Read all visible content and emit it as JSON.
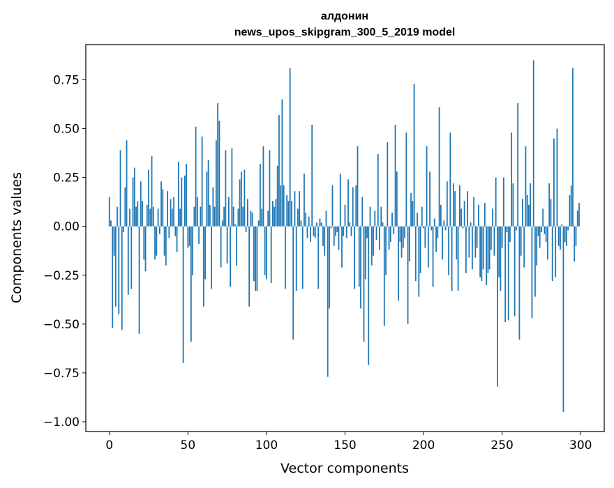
{
  "chart_data": {
    "type": "bar",
    "title_line1": "алдонин",
    "title_line2": "news_upos_skipgram_300_5_2019 model",
    "xlabel": "Vector components",
    "ylabel": "Components values",
    "xlim": [
      -15,
      315
    ],
    "ylim": [
      -1.05,
      0.93
    ],
    "xticks": [
      0,
      50,
      100,
      150,
      200,
      250,
      300
    ],
    "xtick_labels": [
      "0",
      "50",
      "100",
      "150",
      "200",
      "250",
      "300"
    ],
    "yticks": [
      0.75,
      0.5,
      0.25,
      0.0,
      -0.25,
      -0.5,
      -0.75,
      -1.0
    ],
    "ytick_labels": [
      "0.75",
      "0.50",
      "0.25",
      "0.00",
      "−0.25",
      "−0.50",
      "−0.75",
      "−1.00"
    ],
    "bar_color": "#1f77b4",
    "grid": false,
    "values": [
      0.15,
      0.03,
      -0.52,
      -0.15,
      -0.41,
      0.1,
      -0.45,
      0.39,
      -0.53,
      -0.03,
      0.2,
      0.44,
      -0.35,
      0.09,
      -0.32,
      0.25,
      0.3,
      0.1,
      0.13,
      -0.55,
      0.23,
      0.13,
      -0.17,
      -0.23,
      0.11,
      0.29,
      0.09,
      0.36,
      0.1,
      -0.17,
      -0.15,
      0.09,
      -0.04,
      0.23,
      0.19,
      -0.15,
      -0.2,
      0.18,
      -0.06,
      0.14,
      0.09,
      0.15,
      -0.05,
      -0.13,
      0.33,
      0.09,
      0.25,
      -0.7,
      0.26,
      0.32,
      -0.11,
      -0.1,
      -0.59,
      -0.25,
      0.1,
      0.51,
      0.15,
      -0.09,
      0.1,
      0.46,
      -0.41,
      -0.27,
      0.28,
      0.34,
      0.11,
      -0.32,
      0.2,
      0.1,
      0.44,
      0.63,
      0.54,
      -0.21,
      0.03,
      0.1,
      0.39,
      -0.19,
      0.15,
      -0.31,
      0.4,
      0.1,
      0.01,
      -0.2,
      0.09,
      0.24,
      0.28,
      0.1,
      0.29,
      -0.03,
      0.14,
      -0.41,
      0.08,
      0.07,
      -0.28,
      -0.33,
      -0.33,
      0.03,
      0.32,
      0.09,
      0.41,
      -0.25,
      -0.27,
      0.08,
      0.39,
      -0.29,
      0.13,
      0.1,
      0.14,
      0.31,
      0.57,
      0.21,
      0.65,
      0.21,
      -0.32,
      0.16,
      0.13,
      0.81,
      0.13,
      -0.58,
      0.18,
      -0.33,
      0.09,
      0.18,
      0.03,
      -0.32,
      0.27,
      0.07,
      -0.06,
      0.05,
      -0.08,
      0.52,
      -0.05,
      -0.06,
      0.02,
      -0.32,
      0.04,
      0.02,
      -0.1,
      -0.15,
      0.08,
      -0.77,
      -0.42,
      -0.01,
      0.21,
      -0.1,
      -0.05,
      -0.03,
      -0.12,
      0.27,
      -0.21,
      -0.05,
      0.11,
      -0.06,
      0.24,
      0.02,
      -0.05,
      0.2,
      -0.32,
      0.21,
      0.41,
      -0.31,
      -0.42,
      0.15,
      -0.59,
      -0.27,
      -0.06,
      -0.71,
      0.1,
      -0.2,
      -0.15,
      0.08,
      -0.07,
      0.37,
      -0.12,
      0.1,
      0.02,
      -0.51,
      -0.25,
      0.43,
      -0.12,
      -0.08,
      0.07,
      -0.04,
      0.52,
      0.28,
      -0.38,
      -0.08,
      -0.16,
      -0.11,
      -0.06,
      0.48,
      -0.5,
      -0.18,
      0.17,
      0.13,
      0.73,
      -0.28,
      0.07,
      -0.36,
      -0.24,
      0.1,
      -0.01,
      -0.11,
      0.41,
      -0.21,
      0.28,
      -0.02,
      -0.31,
      0.04,
      -0.13,
      -0.06,
      0.61,
      0.11,
      -0.17,
      0.03,
      -0.02,
      0.23,
      -0.25,
      0.48,
      -0.33,
      0.22,
      0.18,
      -0.17,
      -0.33,
      0.21,
      0.09,
      -0.01,
      0.13,
      -0.24,
      0.18,
      -0.16,
      0.02,
      -0.22,
      0.15,
      -0.16,
      -0.11,
      0.11,
      -0.26,
      -0.28,
      -0.22,
      0.12,
      -0.3,
      -0.24,
      -0.22,
      -0.12,
      0.09,
      -0.15,
      0.25,
      -0.82,
      -0.26,
      -0.33,
      -0.11,
      0.25,
      -0.49,
      -0.03,
      -0.48,
      -0.08,
      0.48,
      0.22,
      -0.46,
      -0.02,
      0.63,
      -0.58,
      -0.15,
      0.14,
      -0.21,
      0.41,
      0.16,
      0.11,
      0.22,
      -0.47,
      0.85,
      -0.36,
      -0.2,
      -0.05,
      -0.11,
      -0.03,
      0.09,
      -0.04,
      -0.08,
      -0.17,
      0.22,
      0.14,
      -0.28,
      0.45,
      -0.26,
      0.5,
      -0.1,
      -0.12,
      0.01,
      -0.95,
      -0.08,
      -0.1,
      -0.02,
      0.16,
      0.21,
      0.81,
      -0.18,
      -0.1,
      0.08,
      0.12
    ]
  }
}
